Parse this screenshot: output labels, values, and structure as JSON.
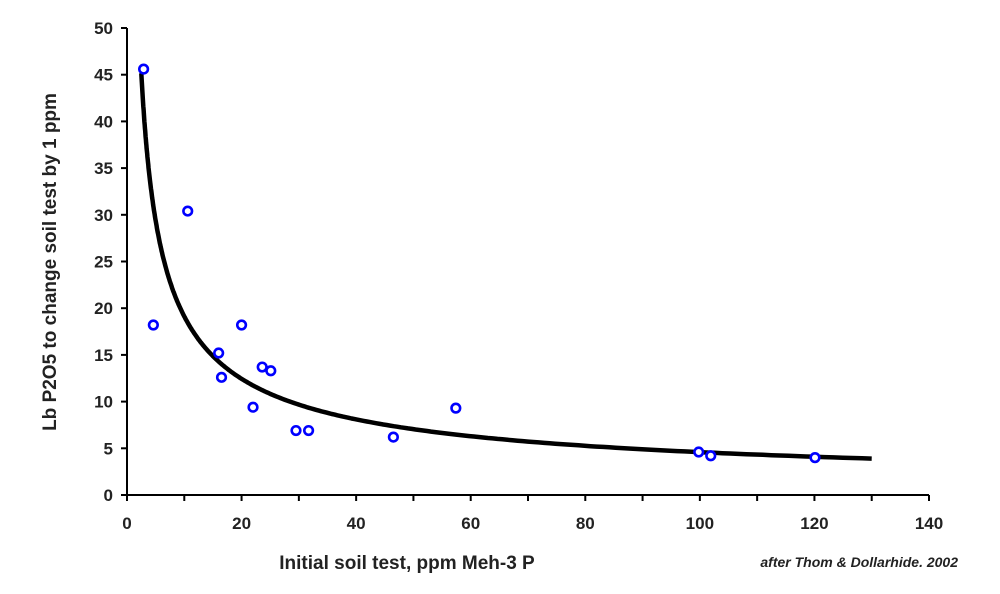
{
  "chart_data": {
    "type": "scatter",
    "title": "",
    "xlabel": "Initial soil test, ppm Meh-3 P",
    "ylabel": "Lb P2O5 to change soil test by 1 ppm",
    "annotation": "after Thom & Dollarhide. 2002",
    "xlim": [
      0,
      140
    ],
    "ylim": [
      0,
      50
    ],
    "x_ticks": [
      0,
      20,
      40,
      60,
      80,
      100,
      120,
      140
    ],
    "x_minor_step": 10,
    "y_ticks": [
      0,
      5,
      10,
      15,
      20,
      25,
      30,
      35,
      40,
      45,
      50
    ],
    "grid": false,
    "legend": "none",
    "series": [
      {
        "name": "observations",
        "marker": "open-circle",
        "color": "#0000ff",
        "points": [
          [
            2.9,
            45.6
          ],
          [
            4.6,
            18.2
          ],
          [
            10.6,
            30.4
          ],
          [
            16.0,
            15.2
          ],
          [
            16.5,
            12.6
          ],
          [
            20.0,
            18.2
          ],
          [
            22.0,
            9.4
          ],
          [
            23.6,
            13.7
          ],
          [
            25.1,
            13.3
          ],
          [
            29.5,
            6.9
          ],
          [
            31.7,
            6.9
          ],
          [
            46.5,
            6.2
          ],
          [
            57.4,
            9.3
          ],
          [
            99.8,
            4.6
          ],
          [
            101.9,
            4.2
          ],
          [
            120.1,
            4.0
          ]
        ]
      },
      {
        "name": "fitted curve",
        "type": "line",
        "color": "#000000",
        "model": "power",
        "coefficient": 79.7,
        "exponent": -0.62,
        "x_range": [
          2.5,
          130
        ]
      }
    ]
  }
}
